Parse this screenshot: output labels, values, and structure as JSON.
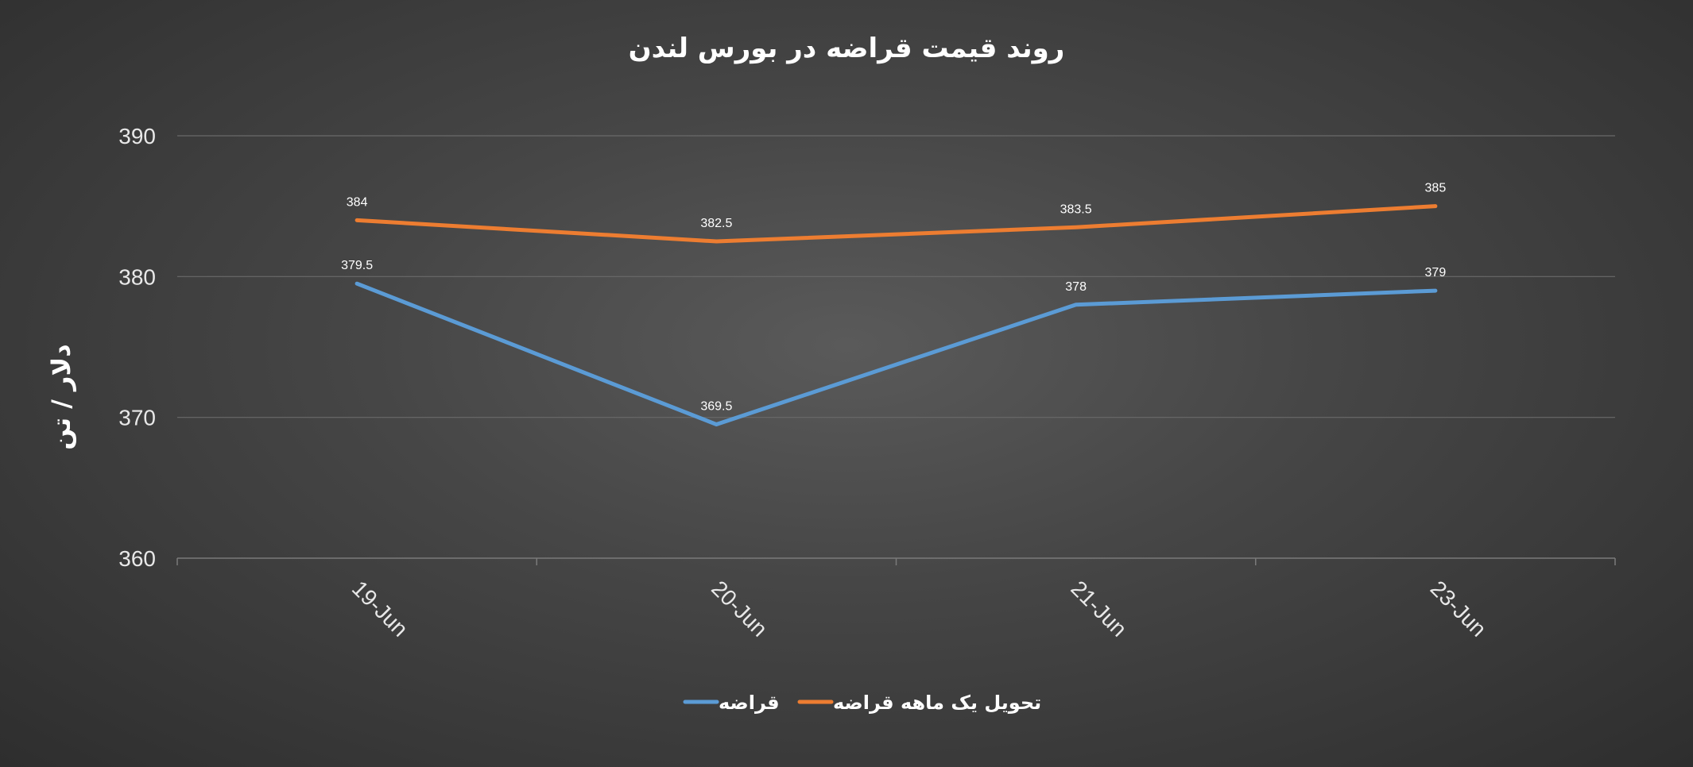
{
  "chart_data": {
    "type": "line",
    "title": "روند قیمت قراضه در بورس لندن",
    "xlabel": "",
    "ylabel": "دلار / تن",
    "categories": [
      "19-Jun",
      "20-Jun",
      "21-Jun",
      "23-Jun"
    ],
    "ylim": [
      360,
      390
    ],
    "yticks": [
      360,
      370,
      380,
      390
    ],
    "grid": true,
    "legend_position": "bottom",
    "series": [
      {
        "name": "قراضه",
        "color": "#5b9bd5",
        "values": [
          379.5,
          369.5,
          378,
          379
        ],
        "labels": [
          "379.5",
          "369.5",
          "378",
          "379"
        ]
      },
      {
        "name": "تحویل یک ماهه قراضه",
        "color": "#ed7d31",
        "values": [
          384,
          382.5,
          383.5,
          385
        ],
        "labels": [
          "384",
          "382.5",
          "383.5",
          "385"
        ]
      }
    ]
  }
}
